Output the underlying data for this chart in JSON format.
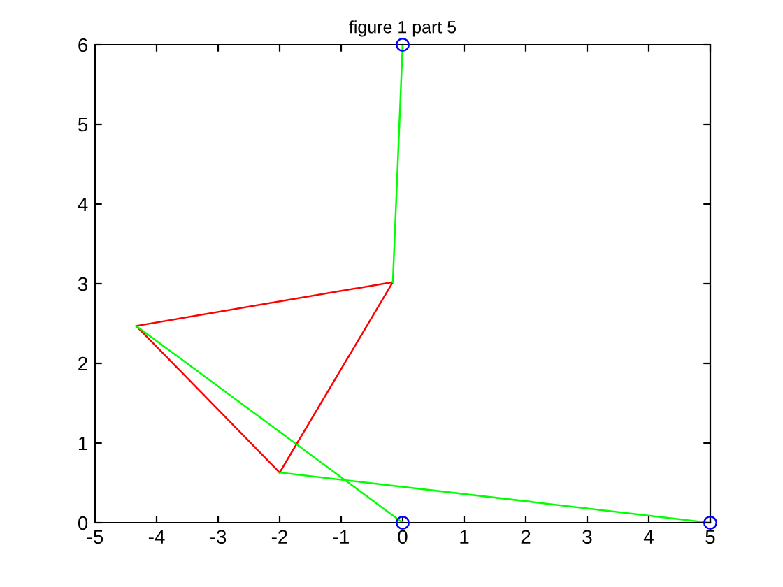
{
  "chart_data": {
    "type": "line",
    "title": "figure 1 part 5",
    "series": [
      {
        "color": "#ff0000",
        "x": [
          -4.33,
          -0.16
        ],
        "values": [
          2.47,
          3.02
        ]
      },
      {
        "color": "#ff0000",
        "x": [
          -2.0,
          -0.16
        ],
        "values": [
          0.63,
          3.02
        ]
      },
      {
        "color": "#ff0000",
        "x": [
          -4.33,
          -2.0
        ],
        "values": [
          2.47,
          0.63
        ]
      },
      {
        "color": "#00ff00",
        "x": [
          0,
          -0.16
        ],
        "values": [
          6,
          3.02
        ]
      },
      {
        "color": "#00ff00",
        "x": [
          -4.33,
          0
        ],
        "values": [
          2.47,
          0
        ]
      },
      {
        "color": "#00ff00",
        "x": [
          -2.0,
          5
        ],
        "values": [
          0.63,
          0
        ]
      },
      {
        "type": "scatter",
        "marker": "circle",
        "color": "#0000ff",
        "x": [
          0,
          0,
          5
        ],
        "values": [
          6,
          0,
          0
        ]
      }
    ],
    "xlim": [
      -5,
      5
    ],
    "xticks": [
      -5,
      -4,
      -3,
      -2,
      -1,
      0,
      1,
      2,
      3,
      4,
      5
    ],
    "ylim": [
      0,
      6
    ],
    "yticks": [
      0,
      1,
      2,
      3,
      4,
      5,
      6
    ],
    "grid": false,
    "legend": false
  }
}
